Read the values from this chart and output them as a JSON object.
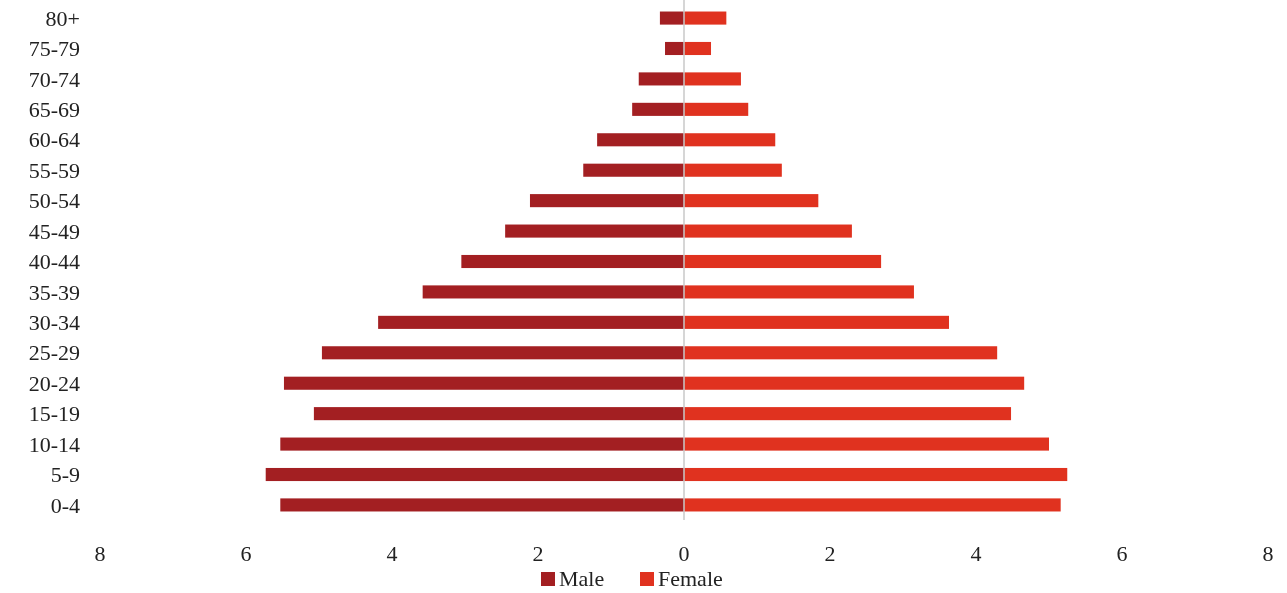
{
  "chart_data": {
    "type": "bar",
    "orientation": "horizontal",
    "stacked": true,
    "categories": [
      "80+",
      "75-79",
      "70-74",
      "65-69",
      "60-64",
      "55-59",
      "50-54",
      "45-49",
      "40-44",
      "35-39",
      "30-34",
      "25-29",
      "20-24",
      "15-19",
      "10-14",
      "5-9",
      "0-4"
    ],
    "series": [
      {
        "name": "Male",
        "color": "#a31f22",
        "values": [
          -0.33,
          -0.26,
          -0.62,
          -0.71,
          -1.19,
          -1.38,
          -2.11,
          -2.45,
          -3.05,
          -3.58,
          -4.19,
          -4.96,
          -5.48,
          -5.07,
          -5.53,
          -5.73,
          -5.53
        ]
      },
      {
        "name": "Female",
        "color": "#e0321f",
        "values": [
          0.58,
          0.37,
          0.78,
          0.88,
          1.25,
          1.34,
          1.84,
          2.3,
          2.7,
          3.15,
          3.63,
          4.29,
          4.66,
          4.48,
          5.0,
          5.25,
          5.16
        ]
      }
    ],
    "xlim": [
      -8,
      8
    ],
    "xticks": [
      {
        "value": -8,
        "label": "8"
      },
      {
        "value": -6,
        "label": "6"
      },
      {
        "value": -4,
        "label": "4"
      },
      {
        "value": -2,
        "label": "2"
      },
      0,
      2,
      4,
      6,
      8
    ],
    "ref_lines": [
      {
        "axis": "x",
        "value": 0,
        "color": "#c8c8c8"
      }
    ],
    "legend": "bottom"
  }
}
